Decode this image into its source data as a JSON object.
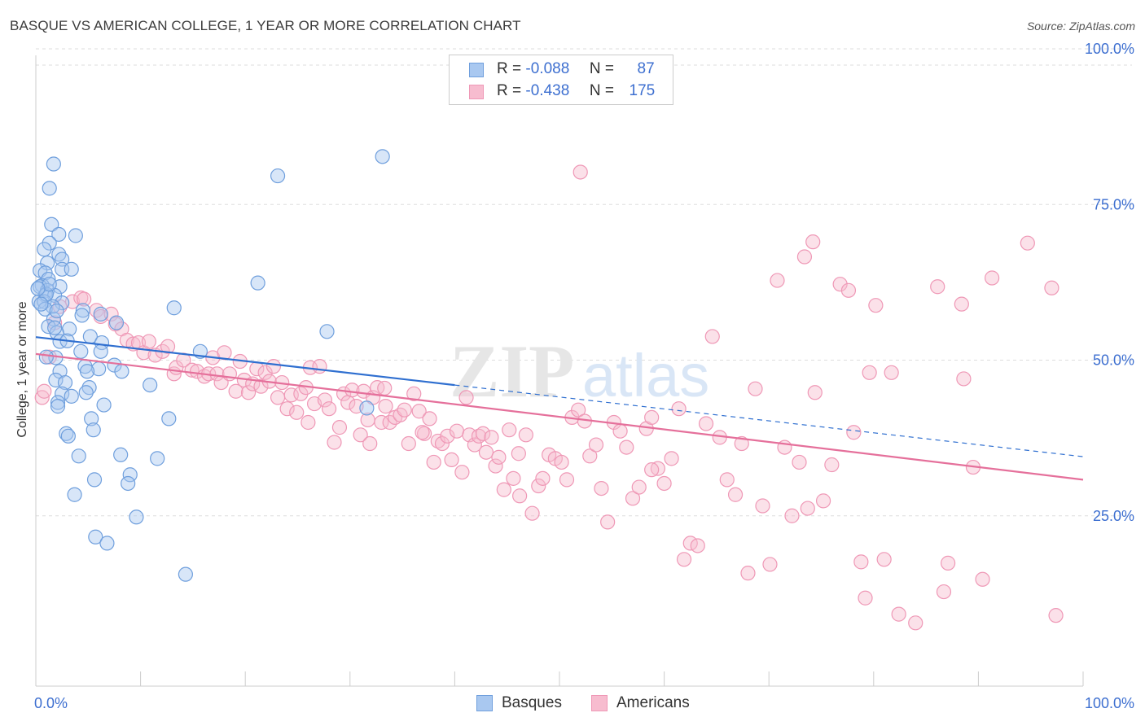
{
  "title": "BASQUE VS AMERICAN COLLEGE, 1 YEAR OR MORE CORRELATION CHART",
  "source": "Source: ZipAtlas.com",
  "watermark": {
    "zip": "ZIP",
    "atlas": "atlas"
  },
  "legend": {
    "rows": [
      {
        "r_label": "R =",
        "r_value": "-0.088",
        "n_label": "N =",
        "n_value": "87"
      },
      {
        "r_label": "R =",
        "r_value": "-0.438",
        "n_label": "N =",
        "n_value": "175"
      }
    ]
  },
  "bottom_legend": {
    "basques": "Basques",
    "americans": "Americans"
  },
  "colors": {
    "basques_fill": "#a9c8f0",
    "basques_stroke": "#6f9fdd",
    "basques_line": "#2f6fd0",
    "americans_fill": "#f7bccf",
    "americans_stroke": "#ef98b6",
    "americans_line": "#e5709b",
    "axis_label": "#3d6fd0",
    "grid": "#dddddd"
  },
  "chart_data": {
    "type": "scatter",
    "title": "BASQUE VS AMERICAN COLLEGE, 1 YEAR OR MORE CORRELATION CHART",
    "xlabel": "",
    "ylabel": "College, 1 year or more",
    "xlim": [
      0,
      100
    ],
    "ylim": [
      0,
      100
    ],
    "x_tick_labels": [
      "0.0%",
      "100.0%"
    ],
    "y_tick_labels": [
      "25.0%",
      "50.0%",
      "75.0%",
      "100.0%"
    ],
    "y_ticks": [
      25,
      50,
      75,
      100
    ],
    "grid": true,
    "legend_position": "top-center",
    "series": [
      {
        "name": "Basques",
        "r": -0.088,
        "n": 87,
        "trend": {
          "solid": [
            [
              0,
              53.7
            ],
            [
              40,
              46.0
            ]
          ],
          "dashed": [
            [
              40,
              46.0
            ],
            [
              100,
              34.5
            ]
          ]
        },
        "points": [
          [
            1.7,
            81.5
          ],
          [
            1.3,
            77.6
          ],
          [
            1.5,
            71.8
          ],
          [
            2.2,
            70.2
          ],
          [
            3.8,
            70.0
          ],
          [
            1.3,
            68.8
          ],
          [
            0.8,
            67.8
          ],
          [
            2.2,
            67.0
          ],
          [
            2.5,
            66.2
          ],
          [
            1.1,
            65.6
          ],
          [
            2.5,
            64.6
          ],
          [
            3.4,
            64.6
          ],
          [
            0.4,
            64.4
          ],
          [
            0.9,
            64.0
          ],
          [
            1.2,
            63.0
          ],
          [
            0.6,
            62.0
          ],
          [
            0.4,
            61.8
          ],
          [
            2.3,
            61.8
          ],
          [
            1.1,
            61.2
          ],
          [
            0.9,
            60.4
          ],
          [
            1.8,
            60.4
          ],
          [
            0.3,
            59.4
          ],
          [
            0.8,
            59.4
          ],
          [
            2.5,
            59.2
          ],
          [
            1.6,
            58.6
          ],
          [
            0.9,
            58.2
          ],
          [
            4.5,
            58.0
          ],
          [
            6.2,
            57.4
          ],
          [
            4.4,
            57.2
          ],
          [
            1.7,
            56.6
          ],
          [
            7.7,
            56.0
          ],
          [
            1.2,
            55.4
          ],
          [
            3.2,
            55.0
          ],
          [
            2.0,
            54.4
          ],
          [
            5.2,
            53.8
          ],
          [
            2.3,
            53.0
          ],
          [
            6.3,
            52.8
          ],
          [
            4.3,
            51.4
          ],
          [
            6.2,
            51.4
          ],
          [
            1.9,
            50.4
          ],
          [
            7.5,
            49.2
          ],
          [
            4.7,
            49.0
          ],
          [
            6.0,
            48.6
          ],
          [
            8.2,
            48.2
          ],
          [
            2.3,
            48.2
          ],
          [
            4.9,
            48.2
          ],
          [
            1.9,
            46.8
          ],
          [
            2.8,
            46.4
          ],
          [
            5.1,
            45.6
          ],
          [
            4.8,
            44.8
          ],
          [
            2.5,
            44.6
          ],
          [
            3.4,
            44.2
          ],
          [
            2.1,
            43.2
          ],
          [
            6.5,
            42.8
          ],
          [
            2.1,
            42.6
          ],
          [
            12.7,
            40.6
          ],
          [
            5.3,
            40.6
          ],
          [
            5.5,
            38.8
          ],
          [
            2.9,
            38.2
          ],
          [
            3.1,
            37.8
          ],
          [
            8.1,
            34.8
          ],
          [
            4.1,
            34.6
          ],
          [
            11.6,
            34.2
          ],
          [
            9.0,
            31.6
          ],
          [
            5.6,
            30.8
          ],
          [
            8.8,
            30.2
          ],
          [
            3.7,
            28.4
          ],
          [
            9.6,
            24.8
          ],
          [
            5.7,
            21.6
          ],
          [
            6.8,
            20.6
          ],
          [
            14.3,
            15.6
          ],
          [
            13.2,
            58.4
          ],
          [
            15.7,
            51.4
          ],
          [
            21.2,
            62.4
          ],
          [
            23.1,
            79.6
          ],
          [
            33.1,
            82.7
          ],
          [
            27.8,
            54.6
          ],
          [
            31.6,
            42.3
          ],
          [
            10.9,
            46.0
          ],
          [
            1.0,
            60.6
          ],
          [
            0.5,
            59.0
          ],
          [
            1.3,
            62.2
          ],
          [
            2.0,
            57.9
          ],
          [
            3.0,
            53.1
          ],
          [
            1.0,
            50.5
          ],
          [
            1.8,
            55.2
          ],
          [
            0.2,
            61.5
          ]
        ]
      },
      {
        "name": "Americans",
        "r": -0.438,
        "n": 175,
        "trend": {
          "solid": [
            [
              0,
              51.0
            ],
            [
              100,
              30.8
            ]
          ]
        },
        "points": [
          [
            0.6,
            44.0
          ],
          [
            0.8,
            45.0
          ],
          [
            1.3,
            50.5
          ],
          [
            1.8,
            56.0
          ],
          [
            2.3,
            58.6
          ],
          [
            3.5,
            59.4
          ],
          [
            4.3,
            60.0
          ],
          [
            4.6,
            59.8
          ],
          [
            5.8,
            58.0
          ],
          [
            6.2,
            57.0
          ],
          [
            7.2,
            57.4
          ],
          [
            7.6,
            55.8
          ],
          [
            8.2,
            55.0
          ],
          [
            8.7,
            53.2
          ],
          [
            9.3,
            52.6
          ],
          [
            9.8,
            52.8
          ],
          [
            10.3,
            51.2
          ],
          [
            10.8,
            53.0
          ],
          [
            11.4,
            50.8
          ],
          [
            12.1,
            51.4
          ],
          [
            12.6,
            52.2
          ],
          [
            13.2,
            47.8
          ],
          [
            13.4,
            48.8
          ],
          [
            14.1,
            50.0
          ],
          [
            14.9,
            48.4
          ],
          [
            15.4,
            48.2
          ],
          [
            16.1,
            47.4
          ],
          [
            16.5,
            47.8
          ],
          [
            16.9,
            50.4
          ],
          [
            17.3,
            47.8
          ],
          [
            17.7,
            46.4
          ],
          [
            18.0,
            51.2
          ],
          [
            18.5,
            47.8
          ],
          [
            19.1,
            45.0
          ],
          [
            19.5,
            49.8
          ],
          [
            19.9,
            46.8
          ],
          [
            20.3,
            44.8
          ],
          [
            20.7,
            46.2
          ],
          [
            21.1,
            48.6
          ],
          [
            21.5,
            45.8
          ],
          [
            21.9,
            48.0
          ],
          [
            22.3,
            46.6
          ],
          [
            22.7,
            49.0
          ],
          [
            23.1,
            44.0
          ],
          [
            23.5,
            46.4
          ],
          [
            24.0,
            42.2
          ],
          [
            24.4,
            44.4
          ],
          [
            24.9,
            41.6
          ],
          [
            25.3,
            44.6
          ],
          [
            25.8,
            45.6
          ],
          [
            26.2,
            48.8
          ],
          [
            26.6,
            43.0
          ],
          [
            27.1,
            49.0
          ],
          [
            27.6,
            43.6
          ],
          [
            28.0,
            42.2
          ],
          [
            28.5,
            36.8
          ],
          [
            29.0,
            39.2
          ],
          [
            29.4,
            44.6
          ],
          [
            29.8,
            43.2
          ],
          [
            30.2,
            45.2
          ],
          [
            30.6,
            42.6
          ],
          [
            31.0,
            38.0
          ],
          [
            31.3,
            45.0
          ],
          [
            31.7,
            40.4
          ],
          [
            32.2,
            44.0
          ],
          [
            32.6,
            45.6
          ],
          [
            33.0,
            40.0
          ],
          [
            33.4,
            42.6
          ],
          [
            33.8,
            40.0
          ],
          [
            34.3,
            40.8
          ],
          [
            34.8,
            41.2
          ],
          [
            35.2,
            42.0
          ],
          [
            35.6,
            36.6
          ],
          [
            36.1,
            44.6
          ],
          [
            36.6,
            41.8
          ],
          [
            37.1,
            38.2
          ],
          [
            37.6,
            40.6
          ],
          [
            38.0,
            33.6
          ],
          [
            38.4,
            37.0
          ],
          [
            38.8,
            36.6
          ],
          [
            39.3,
            37.8
          ],
          [
            39.7,
            34.0
          ],
          [
            40.2,
            38.6
          ],
          [
            40.7,
            32.0
          ],
          [
            41.1,
            44.0
          ],
          [
            41.4,
            38.0
          ],
          [
            41.9,
            36.4
          ],
          [
            42.3,
            37.8
          ],
          [
            42.7,
            38.2
          ],
          [
            43.0,
            35.2
          ],
          [
            43.5,
            37.6
          ],
          [
            43.9,
            33.0
          ],
          [
            44.2,
            34.4
          ],
          [
            44.7,
            29.2
          ],
          [
            45.2,
            38.8
          ],
          [
            45.6,
            31.0
          ],
          [
            46.2,
            28.2
          ],
          [
            46.8,
            38.0
          ],
          [
            47.4,
            25.4
          ],
          [
            48.0,
            29.8
          ],
          [
            48.4,
            31.0
          ],
          [
            49.0,
            34.8
          ],
          [
            49.6,
            34.2
          ],
          [
            50.2,
            33.6
          ],
          [
            50.7,
            30.8
          ],
          [
            51.2,
            40.8
          ],
          [
            51.8,
            42.0
          ],
          [
            52.4,
            40.2
          ],
          [
            52.9,
            34.6
          ],
          [
            53.5,
            36.4
          ],
          [
            54.0,
            29.4
          ],
          [
            54.6,
            24.0
          ],
          [
            55.2,
            40.0
          ],
          [
            55.8,
            38.6
          ],
          [
            56.4,
            36.0
          ],
          [
            57.0,
            27.8
          ],
          [
            57.6,
            29.6
          ],
          [
            58.3,
            39.0
          ],
          [
            58.8,
            40.8
          ],
          [
            59.4,
            32.6
          ],
          [
            60.0,
            30.2
          ],
          [
            60.7,
            34.2
          ],
          [
            61.4,
            42.2
          ],
          [
            61.9,
            18.0
          ],
          [
            62.5,
            20.6
          ],
          [
            63.2,
            20.2
          ],
          [
            64.0,
            39.8
          ],
          [
            64.6,
            53.8
          ],
          [
            65.3,
            37.6
          ],
          [
            66.0,
            30.8
          ],
          [
            66.8,
            28.4
          ],
          [
            67.4,
            36.6
          ],
          [
            68.0,
            15.8
          ],
          [
            68.7,
            45.4
          ],
          [
            69.4,
            26.6
          ],
          [
            70.1,
            17.2
          ],
          [
            70.8,
            62.8
          ],
          [
            71.5,
            36.0
          ],
          [
            72.2,
            25.0
          ],
          [
            72.9,
            33.6
          ],
          [
            73.7,
            26.2
          ],
          [
            74.4,
            44.8
          ],
          [
            75.2,
            27.4
          ],
          [
            76.0,
            33.2
          ],
          [
            76.8,
            62.2
          ],
          [
            77.6,
            61.2
          ],
          [
            78.1,
            38.4
          ],
          [
            78.8,
            17.6
          ],
          [
            79.6,
            48.0
          ],
          [
            80.2,
            58.8
          ],
          [
            81.0,
            18.0
          ],
          [
            81.7,
            48.0
          ],
          [
            82.4,
            9.2
          ],
          [
            84.0,
            7.8
          ],
          [
            86.1,
            61.8
          ],
          [
            86.7,
            12.8
          ],
          [
            87.1,
            17.4
          ],
          [
            88.6,
            47.0
          ],
          [
            89.5,
            32.8
          ],
          [
            90.4,
            14.8
          ],
          [
            91.3,
            63.2
          ],
          [
            94.7,
            68.8
          ],
          [
            79.2,
            11.8
          ],
          [
            52.0,
            80.2
          ],
          [
            97.0,
            61.6
          ],
          [
            97.4,
            9.0
          ],
          [
            73.4,
            66.6
          ],
          [
            88.4,
            59.0
          ],
          [
            74.2,
            69.0
          ],
          [
            33.3,
            45.5
          ],
          [
            46.1,
            35.0
          ],
          [
            58.8,
            32.4
          ],
          [
            26.0,
            40.0
          ],
          [
            36.9,
            38.4
          ],
          [
            31.9,
            36.6
          ]
        ]
      }
    ]
  }
}
